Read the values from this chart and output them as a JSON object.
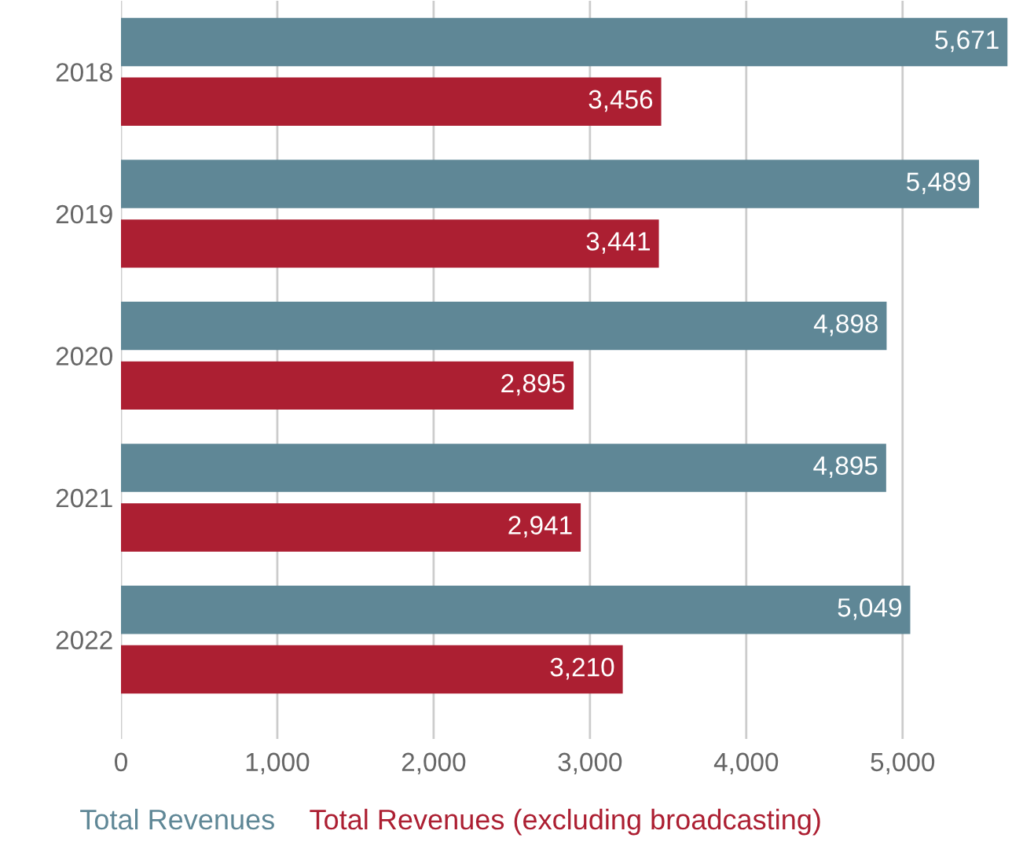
{
  "chart_data": {
    "type": "bar",
    "orientation": "horizontal",
    "categories": [
      "2018",
      "2019",
      "2020",
      "2021",
      "2022"
    ],
    "series": [
      {
        "name": "Total Revenues",
        "color": "#5f8796",
        "values": [
          5671,
          5489,
          4898,
          4895,
          5049
        ],
        "value_labels": [
          "5,671",
          "5,489",
          "4,898",
          "4,895",
          "5,049"
        ]
      },
      {
        "name": "Total Revenues (excluding broadcasting)",
        "color": "#ac1f32",
        "values": [
          3456,
          3441,
          2895,
          2941,
          3210
        ],
        "value_labels": [
          "3,456",
          "3,441",
          "2,895",
          "2,941",
          "3,210"
        ]
      }
    ],
    "xlim": [
      0,
      5700
    ],
    "xticks": [
      {
        "value": 0,
        "label": "0"
      },
      {
        "value": 1000,
        "label": "1,000"
      },
      {
        "value": 2000,
        "label": "2,000"
      },
      {
        "value": 3000,
        "label": "3,000"
      },
      {
        "value": 4000,
        "label": "4,000"
      },
      {
        "value": 5000,
        "label": "5,000"
      }
    ],
    "grid": "x",
    "legend": "bottom"
  }
}
